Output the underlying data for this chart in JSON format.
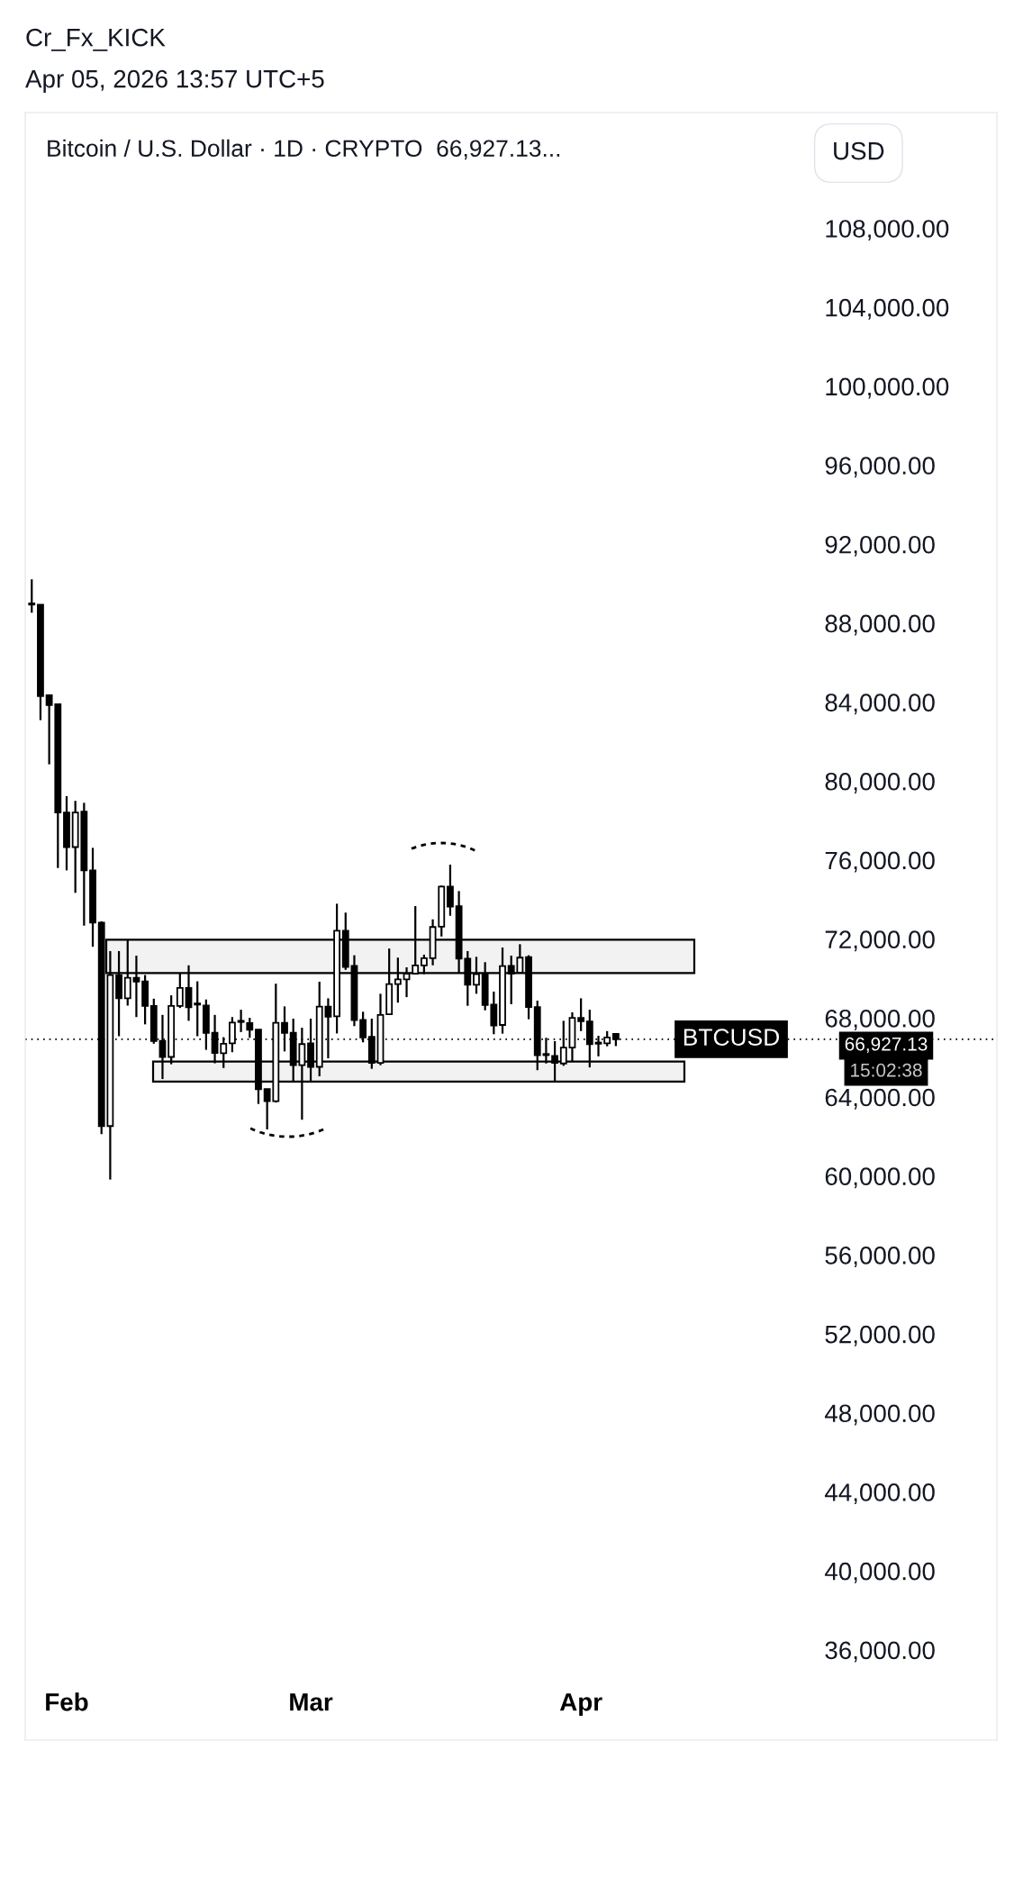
{
  "chart_data": {
    "type": "candlestick",
    "title": "Bitcoin / U.S. Dollar · 1D · CRYPTO  66,927.13...",
    "annotations": [
      "Cr_Fx_KICK",
      "Apr 05, 2026 13:57 UTC+5",
      "USD",
      "66,927.13",
      "15:02:38"
    ],
    "x": [
      "2026-01-28",
      "2026-01-29",
      "2026-01-30",
      "2026-01-31",
      "2026-02-01",
      "2026-02-02",
      "2026-02-03",
      "2026-02-04",
      "2026-02-05",
      "2026-02-06",
      "2026-02-07",
      "2026-02-08",
      "2026-02-09",
      "2026-02-10",
      "2026-02-11",
      "2026-02-12",
      "2026-02-13",
      "2026-02-14",
      "2026-02-15",
      "2026-02-16",
      "2026-02-17",
      "2026-02-18",
      "2026-02-19",
      "2026-02-20",
      "2026-02-21",
      "2026-02-22",
      "2026-02-23",
      "2026-02-24",
      "2026-02-25",
      "2026-02-26",
      "2026-02-27",
      "2026-02-28",
      "2026-03-01",
      "2026-03-02",
      "2026-03-03",
      "2026-03-04",
      "2026-03-05",
      "2026-03-06",
      "2026-03-07",
      "2026-03-08",
      "2026-03-09",
      "2026-03-10",
      "2026-03-11",
      "2026-03-12",
      "2026-03-13",
      "2026-03-14",
      "2026-03-15",
      "2026-03-16",
      "2026-03-17",
      "2026-03-18",
      "2026-03-19",
      "2026-03-20",
      "2026-03-21",
      "2026-03-22",
      "2026-03-23",
      "2026-03-24",
      "2026-03-25",
      "2026-03-26",
      "2026-03-27",
      "2026-03-28",
      "2026-03-29",
      "2026-03-30",
      "2026-03-31",
      "2026-04-01",
      "2026-04-02",
      "2026-04-03",
      "2026-04-04",
      "2026-04-05"
    ],
    "ohlc": [
      [
        88980,
        90220,
        88530,
        88940
      ],
      [
        88940,
        88950,
        83090,
        84310
      ],
      [
        84350,
        84350,
        80850,
        83850
      ],
      [
        83890,
        83900,
        75600,
        78410
      ],
      [
        78410,
        79240,
        75480,
        76660
      ],
      [
        76660,
        79000,
        74340,
        78410
      ],
      [
        78450,
        78900,
        72680,
        75480
      ],
      [
        75480,
        76620,
        71610,
        72830
      ],
      [
        72830,
        72900,
        62120,
        62530
      ],
      [
        62530,
        71390,
        59820,
        70180
      ],
      [
        70180,
        71390,
        67080,
        69000
      ],
      [
        69000,
        71970,
        68630,
        70040
      ],
      [
        70040,
        71160,
        68050,
        69850
      ],
      [
        69860,
        70180,
        67680,
        68610
      ],
      [
        68610,
        68980,
        66700,
        66840
      ],
      [
        66840,
        68160,
        64910,
        66030
      ],
      [
        66030,
        69150,
        65660,
        68610
      ],
      [
        68610,
        70250,
        68510,
        69530
      ],
      [
        69530,
        70670,
        67860,
        68550
      ],
      [
        68720,
        69860,
        67080,
        68680
      ],
      [
        68640,
        68940,
        66390,
        67250
      ],
      [
        67250,
        68160,
        65710,
        66230
      ],
      [
        66220,
        67030,
        65470,
        66700
      ],
      [
        66720,
        68050,
        66270,
        67770
      ],
      [
        67800,
        68420,
        67290,
        67840
      ],
      [
        67740,
        68010,
        67000,
        67410
      ],
      [
        67410,
        67410,
        63650,
        64400
      ],
      [
        64400,
        64400,
        62360,
        63790
      ],
      [
        63790,
        69740,
        63720,
        67760
      ],
      [
        67760,
        68590,
        66310,
        67250
      ],
      [
        67250,
        67970,
        64820,
        65610
      ],
      [
        65610,
        67510,
        62850,
        66680
      ],
      [
        66720,
        67970,
        64820,
        65530
      ],
      [
        65530,
        69840,
        65050,
        68580
      ],
      [
        68580,
        69000,
        65960,
        68070
      ],
      [
        68090,
        73790,
        67220,
        72420
      ],
      [
        72420,
        73340,
        70440,
        70590
      ],
      [
        70640,
        71180,
        67590,
        67900
      ],
      [
        67900,
        68320,
        66770,
        67020
      ],
      [
        67050,
        67970,
        65430,
        65730
      ],
      [
        65730,
        69230,
        65610,
        68160
      ],
      [
        68190,
        71520,
        68190,
        69720
      ],
      [
        69720,
        71060,
        68780,
        69960
      ],
      [
        69960,
        70570,
        69060,
        70250
      ],
      [
        70250,
        73670,
        70220,
        70670
      ],
      [
        70670,
        71210,
        70220,
        71030
      ],
      [
        71030,
        73000,
        70670,
        72610
      ],
      [
        72630,
        74710,
        72130,
        74660
      ],
      [
        74660,
        75770,
        73180,
        73640
      ],
      [
        73670,
        74430,
        70300,
        71010
      ],
      [
        71010,
        71390,
        68620,
        69690
      ],
      [
        69690,
        71100,
        69230,
        70220
      ],
      [
        70250,
        70830,
        68390,
        68660
      ],
      [
        68680,
        69340,
        67180,
        67620
      ],
      [
        67650,
        71570,
        67210,
        70630
      ],
      [
        70640,
        71160,
        68700,
        70250
      ],
      [
        70300,
        71740,
        70300,
        71060
      ],
      [
        71090,
        71180,
        67940,
        68560
      ],
      [
        68560,
        68880,
        65360,
        66120
      ],
      [
        66120,
        67000,
        65700,
        66180
      ],
      [
        66080,
        66830,
        64820,
        65730
      ],
      [
        65700,
        67860,
        65580,
        66500
      ],
      [
        66500,
        68290,
        65810,
        68010
      ],
      [
        68010,
        69000,
        67340,
        67840
      ],
      [
        67820,
        68420,
        65500,
        66680
      ],
      [
        66700,
        67100,
        66060,
        66740
      ],
      [
        66720,
        67340,
        66570,
        67020
      ],
      [
        67200,
        67220,
        66580,
        66927.13
      ]
    ],
    "color": "#000000",
    "xlim": [
      "2026-01-27T06:00",
      "2026-05-18T17:00"
    ],
    "xticks": [
      {
        "value": "2026-02-01",
        "label": "Feb"
      },
      {
        "value": "2026-03-01",
        "label": "Mar"
      },
      {
        "value": "2026-04-01",
        "label": "Apr"
      }
    ],
    "ylim": [
      31430,
      113860
    ],
    "yticks": [
      {
        "value": 36000,
        "label": "36,000.00"
      },
      {
        "value": 40000,
        "label": "40,000.00"
      },
      {
        "value": 44000,
        "label": "44,000.00"
      },
      {
        "value": 48000,
        "label": "48,000.00"
      },
      {
        "value": 52000,
        "label": "52,000.00"
      },
      {
        "value": 56000,
        "label": "56,000.00"
      },
      {
        "value": 60000,
        "label": "60,000.00"
      },
      {
        "value": 64000,
        "label": "64,000.00"
      },
      {
        "value": 68000,
        "label": "68,000.00"
      },
      {
        "value": 72000,
        "label": "72,000.00"
      },
      {
        "value": 76000,
        "label": "76,000.00"
      },
      {
        "value": 80000,
        "label": "80,000.00"
      },
      {
        "value": 84000,
        "label": "84,000.00"
      },
      {
        "value": 88000,
        "label": "88,000.00"
      },
      {
        "value": 92000,
        "label": "92,000.00"
      },
      {
        "value": 96000,
        "label": "96,000.00"
      },
      {
        "value": 100000,
        "label": "100,000.00"
      },
      {
        "value": 104000,
        "label": "104,000.00"
      },
      {
        "value": 108000,
        "label": "108,000.00"
      }
    ],
    "ref_lines": [
      {
        "axis": "y",
        "value": 66927.13,
        "label": "BTCUSD",
        "color": "#000000",
        "line_style": "dotted"
      }
    ],
    "bands": [
      {
        "axis": "y",
        "from": 70280,
        "to": 71970,
        "color": "#000000"
      },
      {
        "axis": "y",
        "from": 64780,
        "to": 65800,
        "color": "#000000"
      }
    ],
    "grid": false
  }
}
